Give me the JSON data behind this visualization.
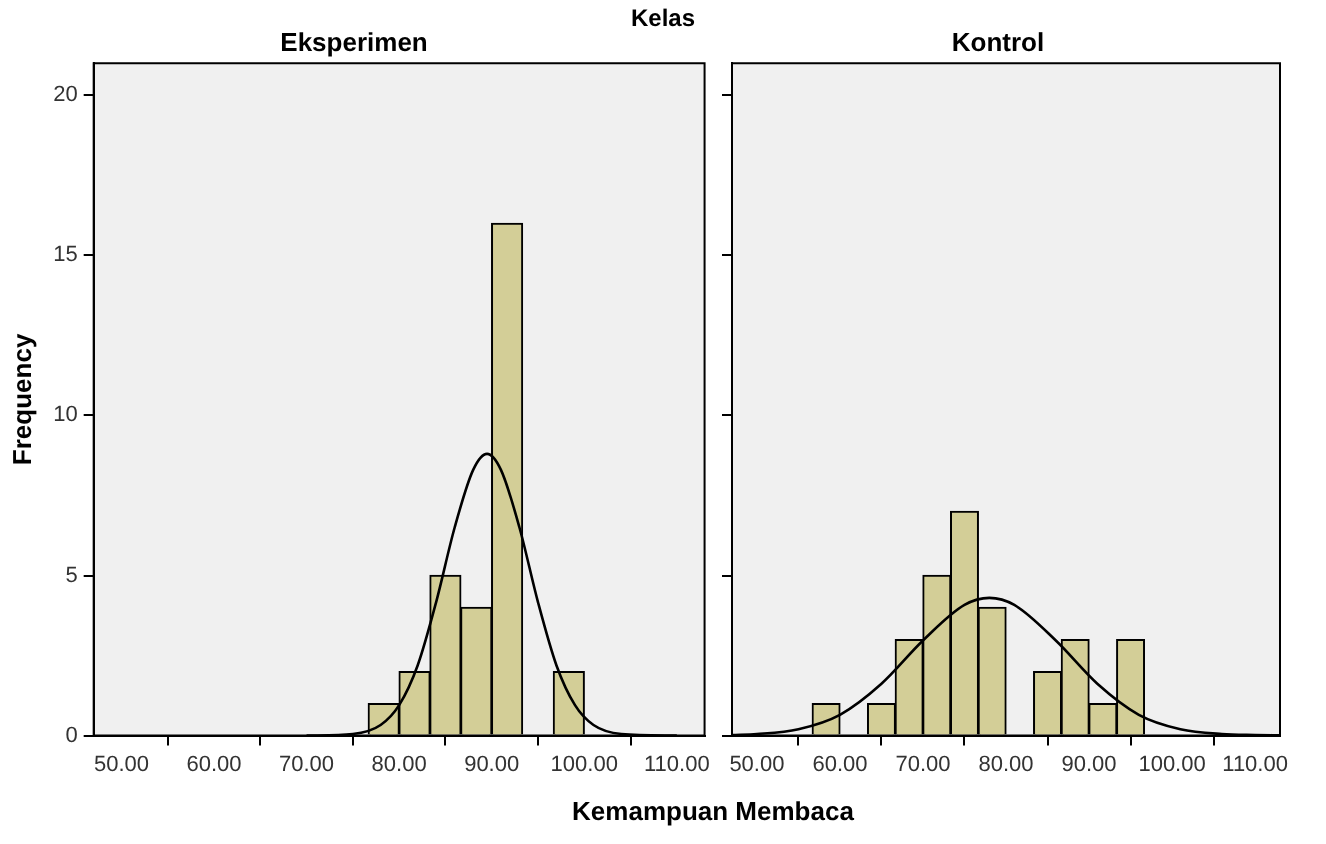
{
  "chart_data": [
    {
      "type": "histogram",
      "title": "Eksperimen",
      "ylabel": "Frequency",
      "xlabel": "Kemampuan Membaca",
      "annotations": [
        "Kelas"
      ],
      "color": "#d3ce97",
      "bins": [
        76.67,
        80,
        83.33,
        86.67,
        90,
        93.33,
        96.67,
        100
      ],
      "values": [
        1,
        2,
        5,
        4,
        16,
        0,
        2
      ],
      "series": [
        {
          "type": "line",
          "color": "#000000",
          "x": [
            70,
            75,
            78,
            80,
            82,
            84,
            86,
            88,
            89.5,
            91,
            93,
            95,
            97,
            99,
            101,
            104,
            110
          ],
          "values": [
            0,
            0.05,
            0.33,
            0.95,
            2.19,
            4.17,
            6.5,
            8.3,
            8.8,
            8.3,
            6.5,
            4.17,
            2.19,
            0.95,
            0.33,
            0.05,
            0
          ]
        }
      ],
      "xlim": [
        47,
        113
      ],
      "xticks": [
        {
          "value": 50,
          "label": "50.00"
        },
        {
          "value": 60,
          "label": "60.00"
        },
        {
          "value": 70,
          "label": "70.00"
        },
        {
          "value": 80,
          "label": "80.00"
        },
        {
          "value": 90,
          "label": "90.00"
        },
        {
          "value": 100,
          "label": "100.00"
        },
        {
          "value": 110,
          "label": "110.00"
        }
      ],
      "ylim": [
        0,
        21
      ],
      "yticks": [
        0,
        5,
        10,
        15,
        20
      ],
      "grid": false,
      "legend": false
    },
    {
      "type": "histogram",
      "title": "Kontrol",
      "color": "#d3ce97",
      "bins": [
        56.67,
        60,
        63.33,
        66.67,
        70,
        73.33,
        76.67,
        80,
        83.33,
        86.67,
        90,
        93.33,
        96.67
      ],
      "values": [
        1,
        0,
        1,
        3,
        5,
        7,
        4,
        0,
        2,
        3,
        1,
        3
      ],
      "series": [
        {
          "type": "line",
          "color": "#000000",
          "x": [
            47,
            50,
            55,
            60,
            65,
            70,
            75,
            78,
            81,
            86,
            91,
            96,
            101,
            106,
            110,
            113
          ],
          "values": [
            0.02,
            0.05,
            0.2,
            0.65,
            1.62,
            2.97,
            4.08,
            4.3,
            4.08,
            2.97,
            1.62,
            0.65,
            0.2,
            0.05,
            0.02,
            0.01
          ]
        }
      ],
      "xlim": [
        47,
        113
      ],
      "xticks": [
        {
          "value": 50,
          "label": "50.00"
        },
        {
          "value": 60,
          "label": "60.00"
        },
        {
          "value": 70,
          "label": "70.00"
        },
        {
          "value": 80,
          "label": "80.00"
        },
        {
          "value": 90,
          "label": "90.00"
        },
        {
          "value": 100,
          "label": "100.00"
        },
        {
          "value": 110,
          "label": "110.00"
        }
      ],
      "ylim": [
        0,
        21
      ],
      "yticks": [
        0,
        5,
        10,
        15,
        20
      ],
      "tick_labels": "x",
      "grid": false,
      "legend": false
    }
  ]
}
